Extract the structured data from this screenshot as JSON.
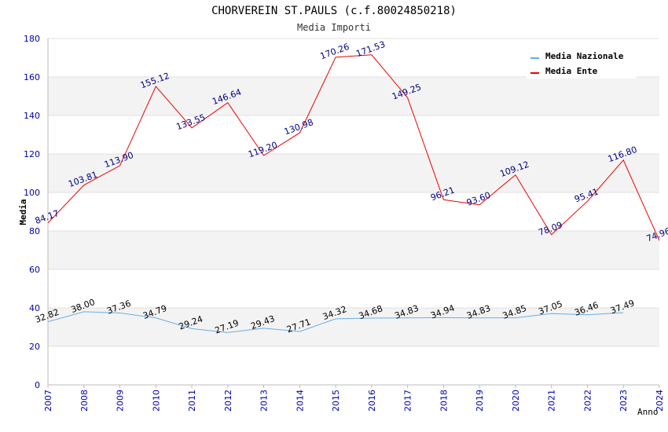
{
  "chart_data": {
    "type": "line",
    "title": "CHORVEREIN ST.PAULS (c.f.80024850218)",
    "subtitle": "Media Importi",
    "xlabel": "Anno",
    "ylabel": "Media",
    "ylim": [
      0,
      180
    ],
    "yticks": [
      0,
      20,
      40,
      60,
      80,
      100,
      120,
      140,
      160,
      180
    ],
    "x": [
      2007,
      2008,
      2009,
      2010,
      2011,
      2012,
      2013,
      2014,
      2015,
      2016,
      2017,
      2018,
      2019,
      2020,
      2021,
      2022,
      2023,
      2024
    ],
    "grid": true,
    "legend_position": "top-right",
    "series": [
      {
        "name": "Media Nazionale",
        "color": "#6aaee8",
        "values": [
          32.82,
          38.0,
          37.36,
          34.79,
          29.24,
          27.19,
          29.43,
          27.71,
          34.32,
          34.68,
          34.83,
          34.94,
          34.83,
          34.85,
          37.05,
          36.46,
          37.49,
          null
        ],
        "labels": [
          "32.82",
          "38.00",
          "37.36",
          "34.79",
          "29.24",
          "27.19",
          "29.43",
          "27.71",
          "34.32",
          "34.68",
          "34.83",
          "34.94",
          "34.83",
          "34.85",
          "37.05",
          "36.46",
          "37.49",
          null
        ]
      },
      {
        "name": "Media Ente",
        "color": "#ee0000",
        "values": [
          84.17,
          103.81,
          113.9,
          155.12,
          133.55,
          146.64,
          119.2,
          130.98,
          170.26,
          171.53,
          149.25,
          96.21,
          93.6,
          109.12,
          78.09,
          95.41,
          116.8,
          74.96
        ],
        "labels": [
          "84.17",
          "103.81",
          "113.90",
          "155.12",
          "133.55",
          "146.64",
          "119.20",
          "130.98",
          "170.26",
          "171.53",
          "149.25",
          "96.21",
          "93.60",
          "109.12",
          "78.09",
          "95.41",
          "116.80",
          "74.96"
        ]
      }
    ]
  }
}
